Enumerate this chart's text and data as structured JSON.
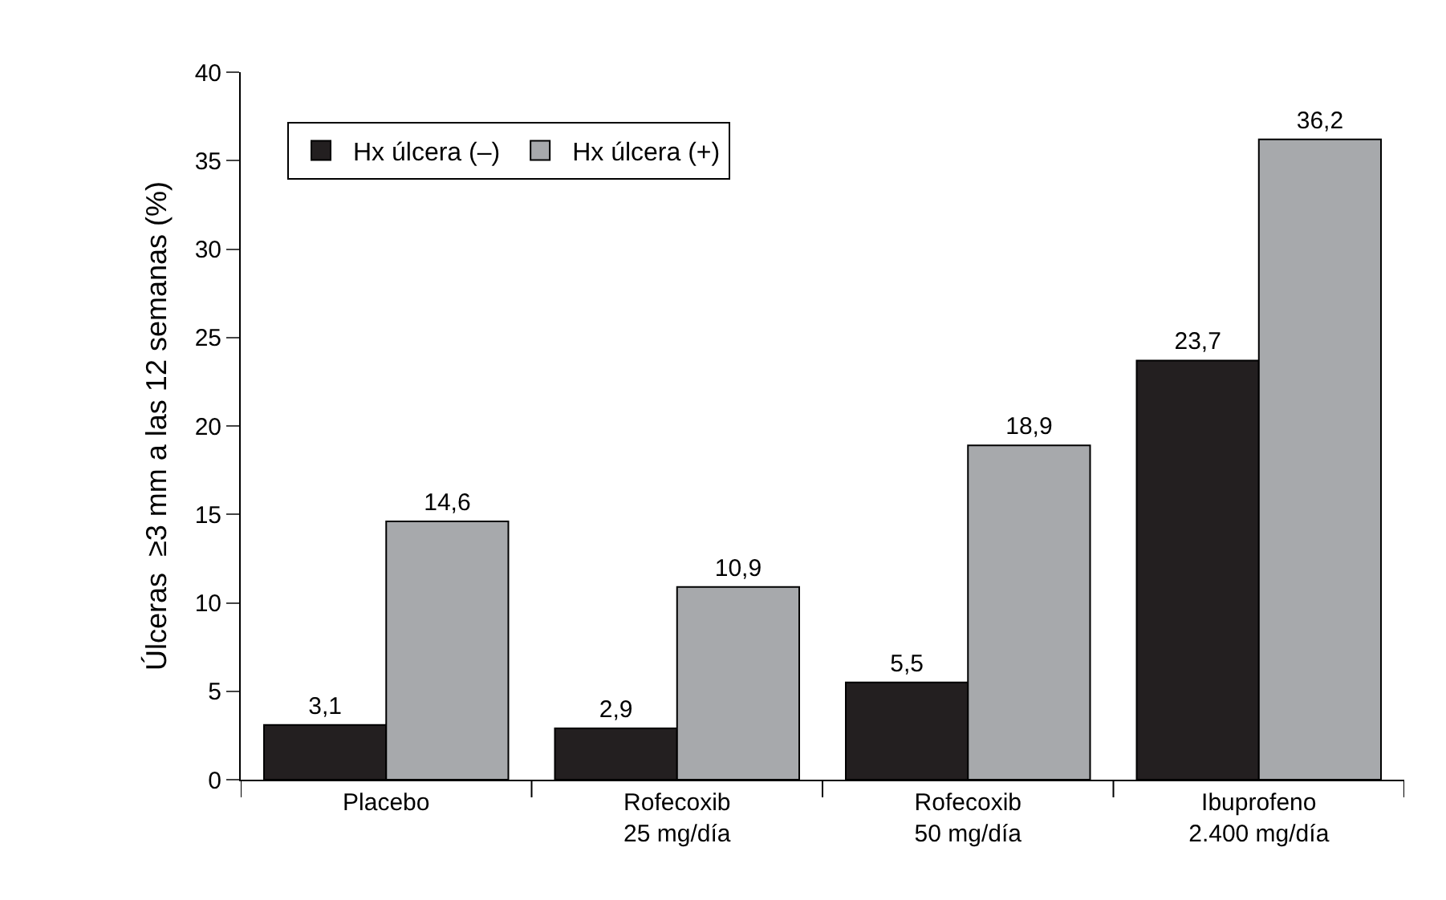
{
  "chart_data": {
    "type": "bar",
    "ylabel": "Úlceras  ≥3 mm a las 12 semanas (%)",
    "categories": [
      "Placebo",
      "Rofecoxib\n25 mg/día",
      "Rofecoxib\n50 mg/día",
      "Ibuprofeno\n2.400 mg/día"
    ],
    "series": [
      {
        "name": "Hx úlcera (–)",
        "color": "#231f20",
        "values": [
          3.1,
          2.9,
          5.5,
          23.7
        ],
        "value_labels": [
          "3,1",
          "2,9",
          "5,5",
          "23,7"
        ]
      },
      {
        "name": "Hx úlcera (+)",
        "color": "#a7a9ac",
        "values": [
          14.6,
          10.9,
          18.9,
          36.2
        ],
        "value_labels": [
          "14,6",
          "10,9",
          "18,9",
          "36,2"
        ]
      }
    ],
    "ylim": [
      0,
      40
    ],
    "yticks": [
      0,
      5,
      10,
      15,
      20,
      25,
      30,
      35,
      40
    ],
    "grid": false,
    "legend": "top left"
  }
}
